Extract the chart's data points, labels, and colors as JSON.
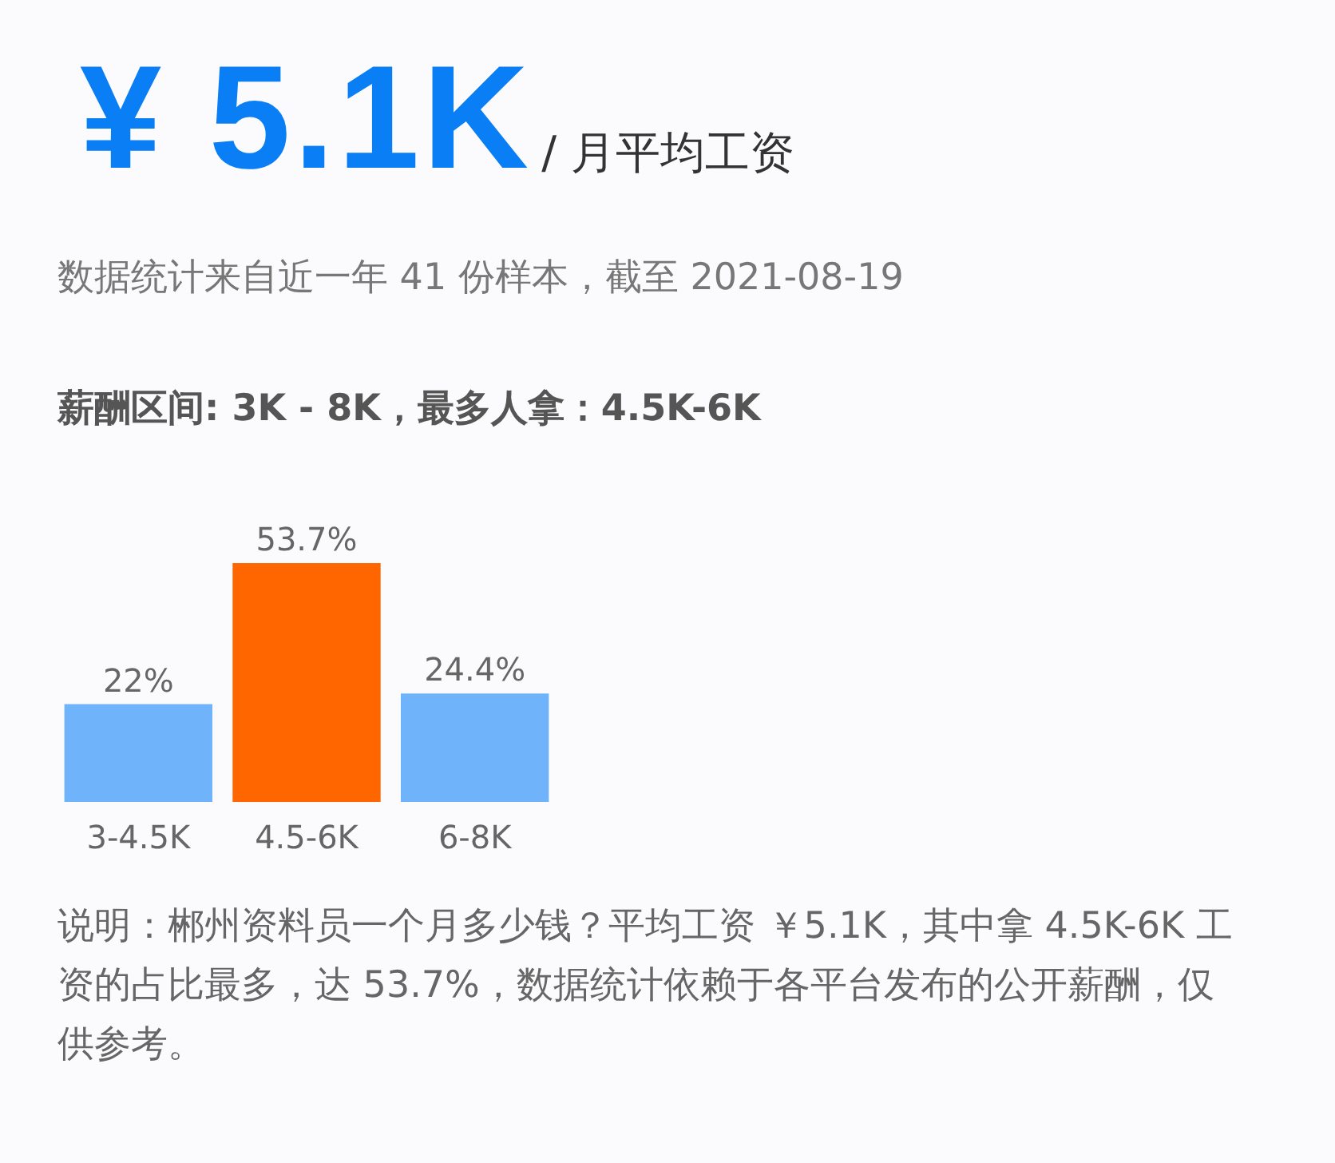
{
  "chart_data": {
    "type": "bar",
    "title": "¥ 5.1K",
    "subtitle": "/ 月平均工资",
    "annotations": [
      "数据统计来自近一年 41 份样本，截至 2021-08-19",
      "薪酬区间: 3K - 8K，最多人拿：4.5K-6K",
      "说明：郴州资料员一个月多少钱？平均工资 ￥5.1K，其中拿 4.5K-6K 工资的占比最多，达 53.7%，数据统计依赖于各平台发布的公开薪酬，仅供参考。"
    ],
    "categories": [
      "3-4.5K",
      "4.5-6K",
      "6-8K"
    ],
    "values": [
      22,
      53.7,
      24.4
    ],
    "colors": [
      "#6fb3fb",
      "#ff6600",
      "#6fb3fb"
    ],
    "value_labels": [
      "22%",
      "53.7%",
      "24.4%"
    ],
    "tick_labels": "x",
    "grid": false
  }
}
